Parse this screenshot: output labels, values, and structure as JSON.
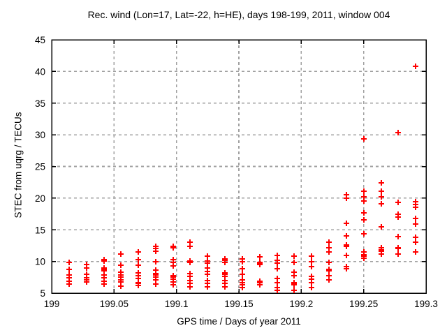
{
  "chart_data": {
    "type": "scatter",
    "title": "Rec. wind (Lon=17, Lat=-22, h=HE), days 198-199, 2011, window 004",
    "xlabel": "GPS time / Days of year 2011",
    "ylabel": "STEC from uqrg / TECUs",
    "xlim": [
      199,
      199.3
    ],
    "ylim": [
      5,
      45
    ],
    "xticks": {
      "values": [
        199,
        199.05,
        199.1,
        199.15,
        199.2,
        199.25,
        199.3
      ],
      "labels": [
        "199",
        "199.05",
        "199.1",
        "199.15",
        "199.2",
        "199.25",
        "199.3"
      ]
    },
    "yticks": {
      "values": [
        5,
        10,
        15,
        20,
        25,
        30,
        35,
        40,
        45
      ],
      "labels": [
        "5",
        "10",
        "15",
        "20",
        "25",
        "30",
        "35",
        "40",
        "45"
      ]
    },
    "grid": {
      "visible": true,
      "style": "dashed",
      "color": "#a0a0a0"
    },
    "legend": "none",
    "colors": {
      "marker": "#ff0000",
      "border": "#000000",
      "background": "#ffffff"
    },
    "series": [
      {
        "name": "STEC",
        "marker": "plus",
        "color": "#ff0000",
        "clusters": [
          {
            "x": 199.0139,
            "stec": [
              9.8,
              8.7,
              7.9,
              7.4,
              6.9,
              6.4
            ]
          },
          {
            "x": 199.0278,
            "stec": [
              9.5,
              9.0,
              8.0,
              7.4,
              7.1,
              6.8
            ]
          },
          {
            "x": 199.0417,
            "stec": [
              10.3,
              10.1,
              9.0,
              8.7,
              8.5,
              7.9,
              7.4,
              6.9,
              6.4
            ]
          },
          {
            "x": 199.0556,
            "stec": [
              11.2,
              9.4,
              8.3,
              7.9,
              7.5,
              7.1,
              6.8,
              6.1
            ]
          },
          {
            "x": 199.0694,
            "stec": [
              11.5,
              10.3,
              9.4,
              8.2,
              7.8,
              7.3,
              6.7,
              6.5,
              6.2
            ]
          },
          {
            "x": 199.0833,
            "stec": [
              12.4,
              12.1,
              11.6,
              10.0,
              8.6,
              8.1,
              7.9,
              7.5,
              7.1,
              6.4
            ]
          },
          {
            "x": 199.0972,
            "stec": [
              12.4,
              12.2,
              10.3,
              9.8,
              9.3,
              7.7,
              7.5,
              7.2,
              6.8,
              6.3
            ]
          },
          {
            "x": 199.1111,
            "stec": [
              13.0,
              12.4,
              10.1,
              9.8,
              8.1,
              7.6,
              7.0,
              6.5,
              6.0
            ]
          },
          {
            "x": 199.125,
            "stec": [
              10.8,
              10.1,
              9.7,
              9.0,
              8.4,
              8.0,
              7.0,
              6.5,
              6.0
            ]
          },
          {
            "x": 199.1389,
            "stec": [
              10.4,
              10.2,
              9.8,
              8.2,
              8.0,
              7.6,
              7.0,
              6.5,
              6.0
            ]
          },
          {
            "x": 199.1528,
            "stec": [
              10.4,
              10.0,
              8.9,
              8.0,
              7.1,
              6.7,
              6.3,
              5.9
            ]
          },
          {
            "x": 199.1667,
            "stec": [
              10.7,
              9.9,
              9.7,
              9.5,
              6.9,
              6.7,
              6.3
            ]
          },
          {
            "x": 199.1806,
            "stec": [
              10.9,
              10.2,
              9.7,
              8.9,
              7.3,
              6.7,
              5.9,
              5.4
            ]
          },
          {
            "x": 199.1944,
            "stec": [
              10.8,
              9.8,
              8.3,
              7.8,
              6.7,
              6.5,
              6.3,
              5.4
            ]
          },
          {
            "x": 199.2083,
            "stec": [
              10.8,
              10.0,
              9.2,
              7.6,
              7.2,
              6.7,
              5.9
            ]
          },
          {
            "x": 199.2222,
            "stec": [
              13.0,
              12.2,
              11.5,
              9.9,
              8.8,
              8.5,
              7.7,
              7.1
            ]
          },
          {
            "x": 199.2361,
            "stec": [
              20.5,
              20.0,
              16.0,
              14.0,
              12.6,
              12.4,
              10.9,
              9.2,
              8.9
            ]
          },
          {
            "x": 199.25,
            "stec": [
              29.4,
              21.1,
              20.2,
              19.6,
              17.7,
              16.6,
              14.4,
              11.5,
              11.1,
              10.8,
              10.5
            ]
          },
          {
            "x": 199.2639,
            "stec": [
              22.4,
              21.1,
              20.2,
              19.1,
              15.5,
              12.2,
              11.8,
              11.6,
              11.2
            ]
          },
          {
            "x": 199.2778,
            "stec": [
              30.3,
              19.3,
              17.4,
              17.0,
              13.9,
              12.2,
              12.0,
              11.2
            ]
          },
          {
            "x": 199.2917,
            "stec": [
              40.8,
              19.4,
              19.0,
              18.6,
              16.8,
              15.9,
              13.8,
              13.0,
              11.5
            ]
          }
        ]
      }
    ]
  }
}
